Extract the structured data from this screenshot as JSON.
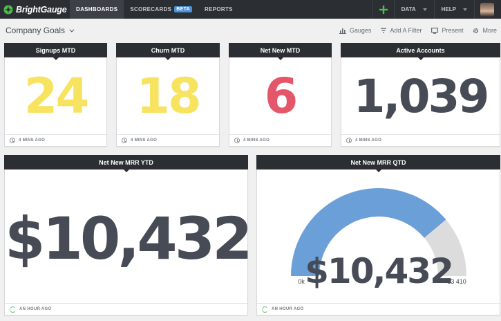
{
  "nav": {
    "logo_text": "BrightGauge",
    "tabs": [
      {
        "label": "DASHBOARDS",
        "active": true
      },
      {
        "label": "SCORECARDS",
        "badge": "BETA"
      },
      {
        "label": "REPORTS"
      }
    ],
    "add_icon": "plus-icon",
    "data_label": "DATA",
    "help_label": "HELP"
  },
  "subheader": {
    "title": "Company Goals",
    "actions": [
      {
        "label": "Gauges",
        "icon": "bar-chart-icon"
      },
      {
        "label": "Add A Filter",
        "icon": "sort-icon"
      },
      {
        "label": "Present",
        "icon": "monitor-icon"
      },
      {
        "label": "More",
        "icon": "gear-icon"
      }
    ]
  },
  "widgets": [
    {
      "title": "Signups MTD",
      "value": "24",
      "color": "#f7e35f",
      "updated": "4 MINS AGO"
    },
    {
      "title": "Churn MTD",
      "value": "18",
      "color": "#f7e35f",
      "updated": "4 MINS AGO"
    },
    {
      "title": "Net New MTD",
      "value": "6",
      "color": "#e4566a",
      "updated": "4 MINS AGO"
    },
    {
      "title": "Active Accounts",
      "value": "1,039",
      "color": "#464b55",
      "updated": "4 MINS AGO"
    },
    {
      "title": "Net New MRR YTD",
      "value": "$10,432",
      "color": "#464b55",
      "updated": "AN HOUR AGO"
    },
    {
      "title": "Net New MRR QTD",
      "value": "$10,432",
      "color": "#464b55",
      "updated": "AN HOUR AGO",
      "gauge": {
        "min_label": "0k",
        "max_label": "13 410",
        "min": 0,
        "max": 13410,
        "value": 10432,
        "fill_color": "#6a9fd8",
        "track_color": "#dcdcdc"
      }
    }
  ],
  "colors": {
    "nav_bg": "#2b2e33",
    "accent_green": "#4cc14a",
    "badge_blue": "#4a90d9"
  }
}
